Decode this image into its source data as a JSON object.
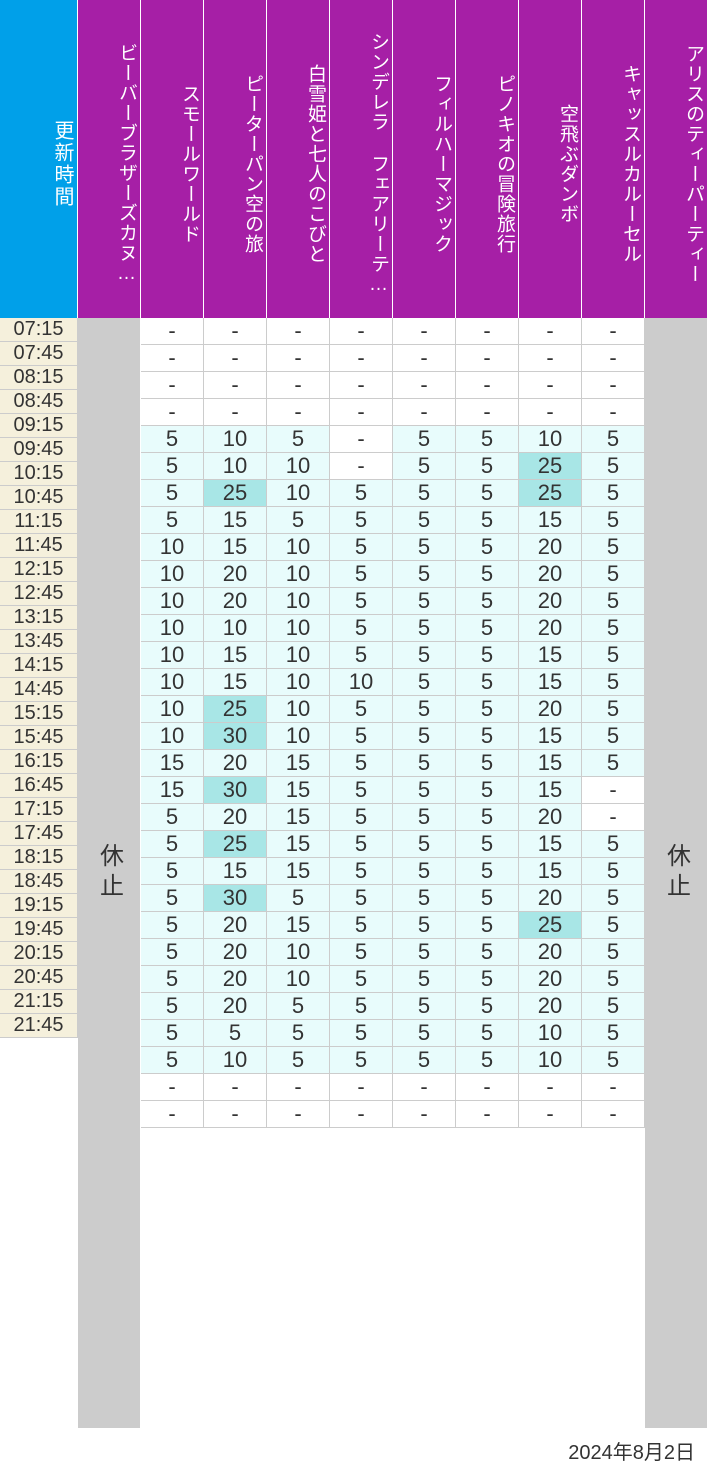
{
  "colors": {
    "time_header_bg": "#00a0e9",
    "attraction_header_bg": "#a61fa6",
    "time_cell_bg": "#f5f0dc",
    "closed_bg": "#cccccc",
    "white_bg": "#ffffff",
    "light_cyan": "#e8fcfc",
    "mid_cyan": "#a8e6e6",
    "text_color": "#333333",
    "header_text": "#ffffff"
  },
  "wait_thresholds": {
    "highlight_min": 25
  },
  "time_header_label": "更新時間",
  "closed_label": "休止",
  "date_footer": "2024年8月2日",
  "attractions": [
    {
      "name": "ビーバーブラザーズカヌ…",
      "closed": true
    },
    {
      "name": "スモールワールド",
      "closed": false
    },
    {
      "name": "ピーターパン空の旅",
      "closed": false
    },
    {
      "name": "白雪姫と七人のこびと",
      "closed": false
    },
    {
      "name": "シンデレラ フェアリーテ…",
      "closed": false
    },
    {
      "name": "フィルハーマジック",
      "closed": false
    },
    {
      "name": "ピノキオの冒険旅行",
      "closed": false
    },
    {
      "name": "空飛ぶダンボ",
      "closed": false
    },
    {
      "name": "キャッスルカルーセル",
      "closed": false
    },
    {
      "name": "アリスのティーパーティー",
      "closed": true
    }
  ],
  "times": [
    "07:15",
    "07:45",
    "08:15",
    "08:45",
    "09:15",
    "09:45",
    "10:15",
    "10:45",
    "11:15",
    "11:45",
    "12:15",
    "12:45",
    "13:15",
    "13:45",
    "14:15",
    "14:45",
    "15:15",
    "15:45",
    "16:15",
    "16:45",
    "17:15",
    "17:45",
    "18:15",
    "18:45",
    "19:15",
    "19:45",
    "20:15",
    "20:45",
    "21:15",
    "21:45"
  ],
  "data": {
    "1": [
      "-",
      "-",
      "-",
      "-",
      "5",
      "5",
      "5",
      "5",
      "10",
      "10",
      "10",
      "10",
      "10",
      "10",
      "10",
      "10",
      "15",
      "15",
      "5",
      "5",
      "5",
      "5",
      "5",
      "5",
      "5",
      "5",
      "5",
      "5",
      "-",
      "-"
    ],
    "2": [
      "-",
      "-",
      "-",
      "-",
      "10",
      "10",
      "25",
      "15",
      "15",
      "20",
      "20",
      "10",
      "15",
      "15",
      "25",
      "30",
      "20",
      "30",
      "20",
      "25",
      "15",
      "30",
      "20",
      "20",
      "20",
      "20",
      "5",
      "10",
      "-",
      "-"
    ],
    "3": [
      "-",
      "-",
      "-",
      "-",
      "5",
      "10",
      "10",
      "5",
      "10",
      "10",
      "10",
      "10",
      "10",
      "10",
      "10",
      "10",
      "15",
      "15",
      "15",
      "15",
      "15",
      "5",
      "15",
      "10",
      "10",
      "5",
      "5",
      "5",
      "-",
      "-"
    ],
    "4": [
      "-",
      "-",
      "-",
      "-",
      "-",
      "-",
      "5",
      "5",
      "5",
      "5",
      "5",
      "5",
      "5",
      "10",
      "5",
      "5",
      "5",
      "5",
      "5",
      "5",
      "5",
      "5",
      "5",
      "5",
      "5",
      "5",
      "5",
      "5",
      "-",
      "-"
    ],
    "5": [
      "-",
      "-",
      "-",
      "-",
      "5",
      "5",
      "5",
      "5",
      "5",
      "5",
      "5",
      "5",
      "5",
      "5",
      "5",
      "5",
      "5",
      "5",
      "5",
      "5",
      "5",
      "5",
      "5",
      "5",
      "5",
      "5",
      "5",
      "5",
      "-",
      "-"
    ],
    "6": [
      "-",
      "-",
      "-",
      "-",
      "5",
      "5",
      "5",
      "5",
      "5",
      "5",
      "5",
      "5",
      "5",
      "5",
      "5",
      "5",
      "5",
      "5",
      "5",
      "5",
      "5",
      "5",
      "5",
      "5",
      "5",
      "5",
      "5",
      "5",
      "-",
      "-"
    ],
    "7": [
      "-",
      "-",
      "-",
      "-",
      "10",
      "25",
      "25",
      "15",
      "20",
      "20",
      "20",
      "20",
      "15",
      "15",
      "20",
      "15",
      "15",
      "15",
      "20",
      "15",
      "15",
      "20",
      "25",
      "20",
      "20",
      "20",
      "10",
      "10",
      "-",
      "-"
    ],
    "8": [
      "-",
      "-",
      "-",
      "-",
      "5",
      "5",
      "5",
      "5",
      "5",
      "5",
      "5",
      "5",
      "5",
      "5",
      "5",
      "5",
      "5",
      "-",
      "-",
      "5",
      "5",
      "5",
      "5",
      "5",
      "5",
      "5",
      "5",
      "5",
      "-",
      "-"
    ]
  }
}
